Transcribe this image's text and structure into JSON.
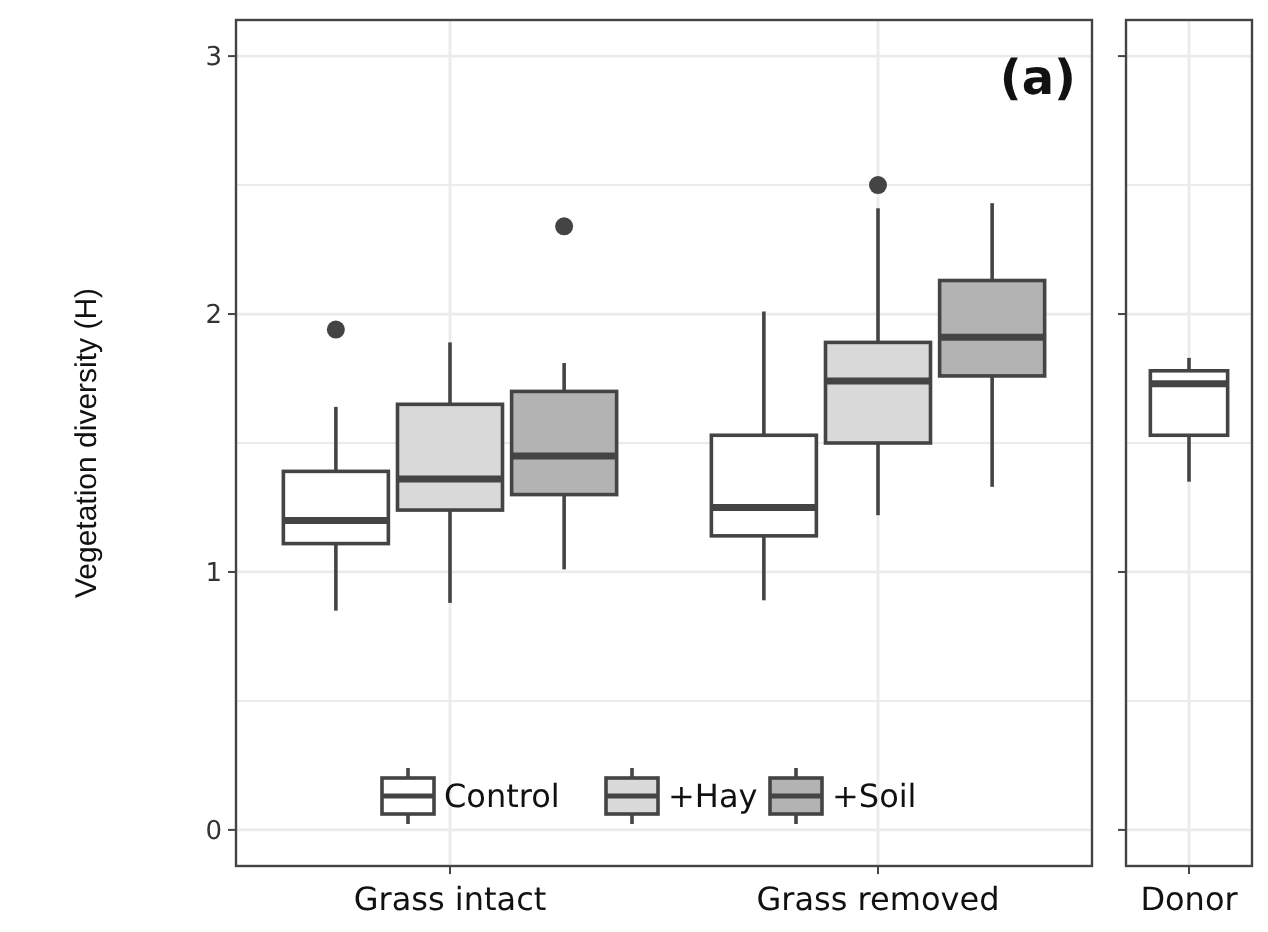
{
  "chart_data": [
    {
      "type": "box",
      "title": "(a)",
      "ylabel": "Vegetation diversity (H)",
      "categories": [
        "Grass intact",
        "Grass removed"
      ],
      "ylim": [
        -0.14,
        3.14
      ],
      "yticks": [
        0,
        {
          "value": 0.5,
          "label": null
        },
        1,
        {
          "value": 1.5,
          "label": null
        },
        2,
        {
          "value": 2.5,
          "label": null
        },
        3
      ],
      "grid": true,
      "legend": "bottom",
      "series": [
        {
          "name": "Control",
          "color": "#ffffff",
          "boxes": [
            {
              "low": 0.85,
              "q1": 1.11,
              "median": 1.2,
              "q3": 1.39,
              "high": 1.64,
              "outliers": [
                1.94
              ]
            },
            {
              "low": 0.89,
              "q1": 1.14,
              "median": 1.25,
              "q3": 1.53,
              "high": 2.01
            }
          ]
        },
        {
          "name": "+Hay",
          "color": "#d9d9d9",
          "boxes": [
            {
              "low": 0.88,
              "q1": 1.24,
              "median": 1.36,
              "q3": 1.65,
              "high": 1.89
            },
            {
              "low": 1.22,
              "q1": 1.5,
              "median": 1.74,
              "q3": 1.89,
              "high": 2.41,
              "outliers": [
                2.5
              ]
            }
          ]
        },
        {
          "name": "+Soil",
          "color": "#b3b3b3",
          "boxes": [
            {
              "low": 1.01,
              "q1": 1.3,
              "median": 1.45,
              "q3": 1.7,
              "high": 1.81,
              "outliers": [
                2.34
              ]
            },
            {
              "low": 1.33,
              "q1": 1.76,
              "median": 1.91,
              "q3": 2.13,
              "high": 2.43
            }
          ]
        }
      ]
    },
    {
      "type": "box",
      "categories": [
        "Donor"
      ],
      "ylim": [
        -0.14,
        3.14
      ],
      "yticks": [
        0,
        {
          "value": 0.5,
          "label": null
        },
        1,
        {
          "value": 1.5,
          "label": null
        },
        2,
        {
          "value": 2.5,
          "label": null
        },
        3
      ],
      "grid": true,
      "tick_labels": "x",
      "series": [
        {
          "color": "#ffffff",
          "boxes": [
            {
              "low": 1.35,
              "q1": 1.53,
              "median": 1.73,
              "q3": 1.78,
              "high": 1.83
            }
          ]
        }
      ]
    }
  ]
}
